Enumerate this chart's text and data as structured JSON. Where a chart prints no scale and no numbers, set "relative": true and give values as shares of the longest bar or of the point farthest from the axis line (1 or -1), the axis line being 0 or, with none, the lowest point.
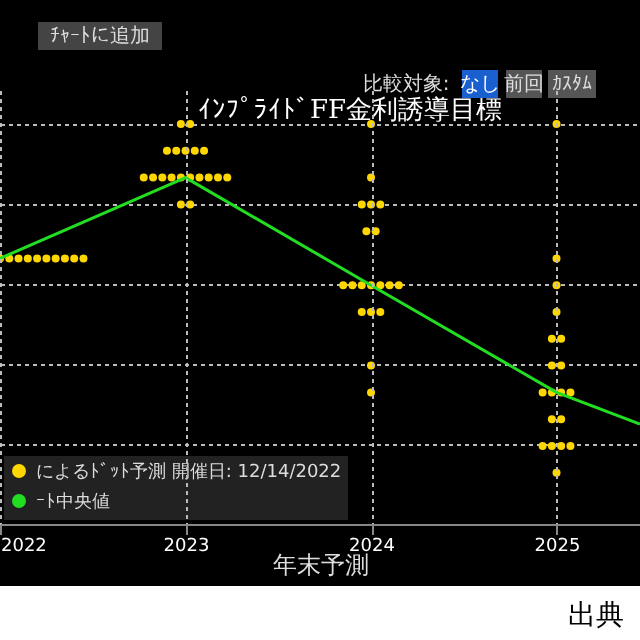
{
  "chart_data": {
    "type": "scatter",
    "title": "ｲﾝﾌﾟﾗｲﾄﾞFF金利誘導目標",
    "xlabel": "年末予測",
    "relative": true,
    "xlim": [
      2022,
      2025.45
    ],
    "xticks": [
      2022,
      2023,
      2024,
      2025
    ],
    "grid": true,
    "legend": "bottom left",
    "marker": "circle",
    "annotations": [
      "ﾁｬｰﾄに追加",
      "比較対象:",
      "なし",
      "前回",
      "ｶｽﾀﾑ",
      "出典"
    ],
    "series": [
      {
        "name": "によるﾄﾞｯﾄ予測 開催日: 12/14/2022",
        "color": "#ffd700",
        "x": [
          2022.0,
          2022.05,
          2022.1,
          2022.15,
          2022.2,
          2022.25,
          2022.3,
          2022.35,
          2022.4,
          2022.45,
          2022.975,
          2023.025,
          2022.9,
          2022.95,
          2023.0,
          2023.05,
          2023.1,
          2022.775,
          2022.825,
          2022.875,
          2022.925,
          2022.975,
          2023.025,
          2023.075,
          2023.125,
          2023.175,
          2023.225,
          2022.975,
          2023.025,
          2024.0,
          2024.0,
          2023.95,
          2024.0,
          2024.05,
          2023.975,
          2024.025,
          2023.85,
          2023.9,
          2023.95,
          2024.0,
          2024.05,
          2024.1,
          2024.15,
          2023.95,
          2024.0,
          2024.05,
          2024.0,
          2024.0,
          2025.0,
          2025.0,
          2025.0,
          2025.0,
          2024.975,
          2025.025,
          2024.975,
          2025.025,
          2024.925,
          2024.975,
          2025.025,
          2025.075,
          2024.975,
          2025.025,
          2024.925,
          2024.975,
          2025.025,
          2025.075,
          2025.0
        ],
        "values": [
          0.664,
          0.664,
          0.664,
          0.664,
          0.664,
          0.664,
          0.664,
          0.664,
          0.664,
          0.664,
          1.0,
          1.0,
          0.933,
          0.933,
          0.933,
          0.933,
          0.933,
          0.866,
          0.866,
          0.866,
          0.866,
          0.866,
          0.866,
          0.866,
          0.866,
          0.866,
          0.866,
          0.799,
          0.799,
          1.0,
          0.866,
          0.799,
          0.799,
          0.799,
          0.732,
          0.732,
          0.597,
          0.597,
          0.597,
          0.597,
          0.597,
          0.597,
          0.597,
          0.53,
          0.53,
          0.53,
          0.396,
          0.329,
          1.0,
          0.664,
          0.597,
          0.53,
          0.463,
          0.463,
          0.396,
          0.396,
          0.329,
          0.329,
          0.329,
          0.329,
          0.262,
          0.262,
          0.195,
          0.195,
          0.195,
          0.195,
          0.128
        ]
      },
      {
        "name": "ｰﾄ中央値",
        "type": "line",
        "color": "#22dd22",
        "marker": "none",
        "x": [
          2022,
          2023,
          2024,
          2025,
          2025.45
        ],
        "values": [
          0.664,
          0.866,
          0.597,
          0.329,
          0.25
        ]
      }
    ]
  }
}
